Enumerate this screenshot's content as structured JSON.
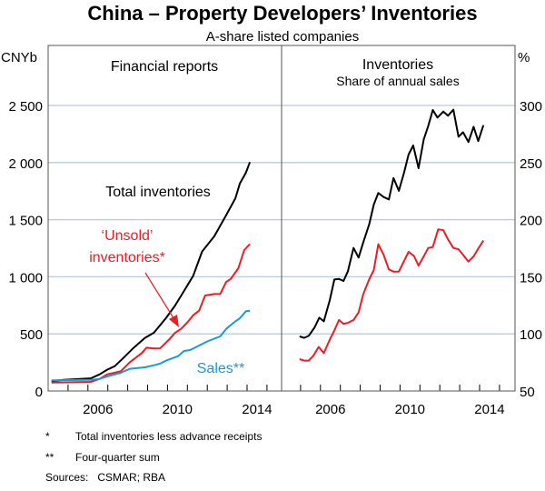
{
  "chart_data": [
    {
      "type": "line",
      "title": "China – Property Developers’ Inventories",
      "subtitle": "A-share listed companies",
      "panel_title": "Financial reports",
      "ylabel": "CNYb",
      "ylim": [
        0,
        3000
      ],
      "yticks": [
        "0",
        "500",
        "1 000",
        "1 500",
        "2 000",
        "2 500"
      ],
      "ytick_values": [
        0,
        500,
        1000,
        1500,
        2000,
        2500
      ],
      "xlim": [
        2004,
        2015.7
      ],
      "xticks": [
        "2006",
        "2010",
        "2014"
      ],
      "grid": true,
      "series": [
        {
          "name": "Total inventories",
          "color": "#000000",
          "x": [
            2004.17,
            2004.77,
            2006.14,
            2006.59,
            2006.97,
            2007.35,
            2007.8,
            2008.26,
            2008.86,
            2009.32,
            2009.92,
            2010.38,
            2010.83,
            2011.29,
            2011.74,
            2012.35,
            2012.95,
            2013.41,
            2013.64,
            2013.94,
            2014.14
          ],
          "y": [
            85,
            98,
            111,
            146,
            186,
            217,
            292,
            372,
            464,
            510,
            637,
            748,
            876,
            1009,
            1221,
            1354,
            1540,
            1686,
            1818,
            1911,
            2004
          ]
        },
        {
          "name": "‘Unsold’ inventories*",
          "color": "#ed1c24",
          "x": [
            2004.17,
            2006.14,
            2006.59,
            2006.97,
            2007.65,
            2008.11,
            2008.71,
            2008.94,
            2009.32,
            2009.62,
            2010.08,
            2010.38,
            2010.68,
            2010.98,
            2011.29,
            2011.59,
            2011.89,
            2012.35,
            2012.65,
            2012.95,
            2013.18,
            2013.56,
            2013.86,
            2014.14
          ],
          "y": [
            74,
            80,
            106,
            146,
            172,
            252,
            332,
            379,
            372,
            372,
            451,
            509,
            544,
            597,
            663,
            703,
            836,
            849,
            849,
            955,
            981,
            1075,
            1234,
            1287
          ]
        },
        {
          "name": "Sales**",
          "color": "#1a9ad6",
          "x": [
            2004.17,
            2006.14,
            2006.59,
            2006.97,
            2007.65,
            2008.11,
            2008.86,
            2009.32,
            2009.62,
            2009.92,
            2010.53,
            2010.83,
            2011.14,
            2011.59,
            2012.05,
            2012.65,
            2012.95,
            2013.41,
            2013.64,
            2013.94,
            2014.14
          ],
          "y": [
            93,
            98,
            106,
            127,
            159,
            194,
            207,
            225,
            239,
            265,
            305,
            350,
            358,
            398,
            438,
            478,
            544,
            610,
            637,
            698,
            703
          ]
        }
      ],
      "annotations": [
        "Total inventories",
        "‘Unsold’",
        "inventories*",
        "Sales**"
      ]
    },
    {
      "type": "line",
      "panel_title": "Inventories",
      "panel_subtitle": "Share of annual sales",
      "ylabel": "%",
      "ylim": [
        50,
        310
      ],
      "yticks": [
        "50",
        "100",
        "150",
        "200",
        "250",
        "300"
      ],
      "ytick_values": [
        50,
        100,
        150,
        200,
        250,
        300
      ],
      "xlim": [
        2004,
        2015.7
      ],
      "xticks": [
        "2006",
        "2010",
        "2014"
      ],
      "grid": true,
      "series": [
        {
          "color": "#000000",
          "x": [
            2004.95,
            2005.18,
            2005.41,
            2005.71,
            2005.94,
            2006.17,
            2006.47,
            2006.7,
            2006.93,
            2007.16,
            2007.38,
            2007.66,
            2007.92,
            2008.15,
            2008.45,
            2008.68,
            2008.91,
            2009.18,
            2009.44,
            2009.67,
            2009.94,
            2010.2,
            2010.43,
            2010.66,
            2010.93,
            2011.19,
            2011.42,
            2011.65,
            2011.88,
            2012.18,
            2012.41,
            2012.68,
            2012.94,
            2013.17,
            2013.44,
            2013.7,
            2013.93,
            2014.19
          ],
          "y": [
            97.8,
            96.5,
            98.3,
            105.7,
            114.2,
            111,
            129.6,
            147.6,
            148.1,
            146.3,
            154.8,
            175.2,
            166.8,
            180.1,
            196,
            213.2,
            223.3,
            219.8,
            217.7,
            236.5,
            225.2,
            241.1,
            257,
            265,
            245.1,
            270.3,
            282.2,
            296,
            289.4,
            294.7,
            291,
            296.3,
            272.6,
            276.6,
            268,
            281.4,
            268.8,
            282.7
          ]
        },
        {
          "color": "#ed1c24",
          "x": [
            2004.95,
            2005.18,
            2005.41,
            2005.63,
            2005.91,
            2006.17,
            2006.47,
            2006.7,
            2006.93,
            2007.16,
            2007.38,
            2007.66,
            2007.92,
            2008.15,
            2008.42,
            2008.68,
            2008.91,
            2009.18,
            2009.44,
            2009.67,
            2009.94,
            2010.2,
            2010.43,
            2010.7,
            2010.93,
            2011.19,
            2011.42,
            2011.65,
            2011.92,
            2012.18,
            2012.41,
            2012.68,
            2012.94,
            2013.17,
            2013.44,
            2013.7,
            2013.93,
            2014.19
          ],
          "y": [
            77.9,
            76.6,
            76.6,
            80.6,
            88.5,
            83.2,
            95,
            103,
            112.2,
            108.8,
            109.6,
            112.2,
            118.8,
            134.7,
            146.6,
            155.9,
            178.5,
            169.2,
            156.4,
            154.5,
            154.5,
            163.8,
            171.8,
            168.3,
            159.8,
            167.8,
            175.2,
            176,
            191.6,
            190.8,
            182.8,
            175.2,
            174.1,
            169.2,
            163.3,
            167.8,
            174.7,
            181.8
          ]
        }
      ]
    }
  ],
  "footnotes": [
    {
      "mark": "*",
      "text": "Total inventories less advance receipts"
    },
    {
      "mark": "**",
      "text": "Four-quarter sum"
    }
  ],
  "sources": "Sources:   CSMAR; RBA"
}
